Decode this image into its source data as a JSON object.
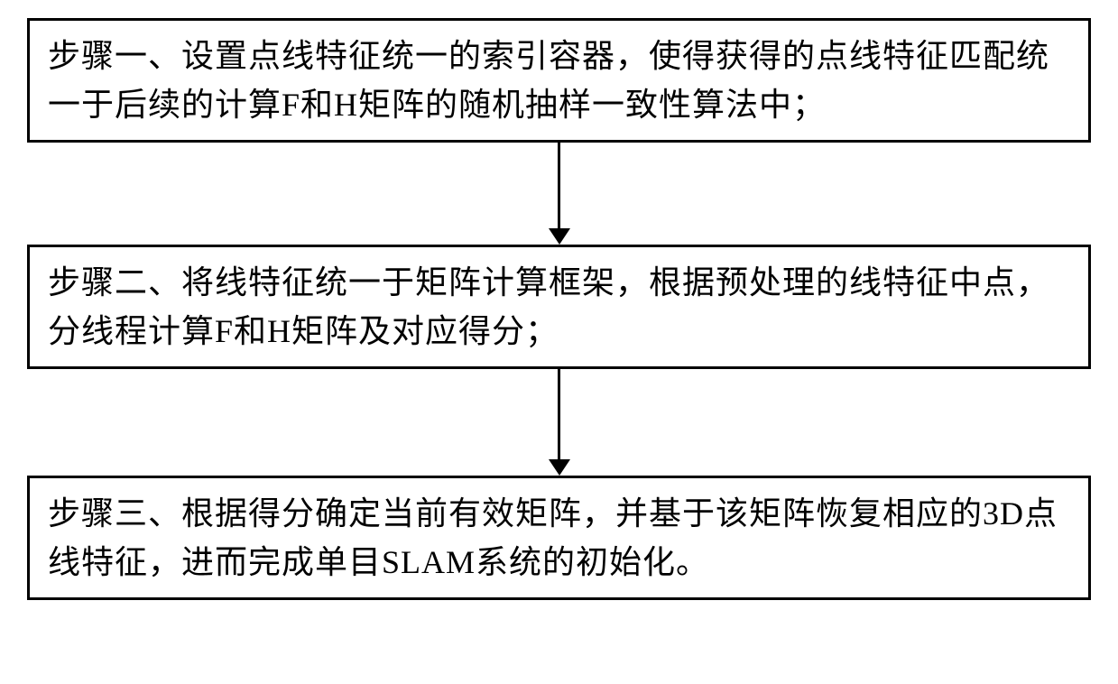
{
  "flowchart": {
    "type": "flowchart",
    "direction": "vertical",
    "background_color": "#ffffff",
    "box_border_color": "#000000",
    "box_border_width": 3,
    "box_padding": "12px 20px",
    "text_color": "#000000",
    "font_family": "SimSun",
    "font_size": 36,
    "line_height": 1.5,
    "arrow_color": "#000000",
    "arrow_line_width": 3,
    "arrow_head_size": 18,
    "steps": [
      {
        "id": "step1",
        "text": "步骤一、设置点线特征统一的索引容器，使得获得的点线特征匹配统一于后续的计算F和H矩阵的随机抽样一致性算法中；",
        "arrow_height": 95
      },
      {
        "id": "step2",
        "text": "步骤二、将线特征统一于矩阵计算框架，根据预处理的线特征中点，分线程计算F和H矩阵及对应得分；",
        "arrow_height": 100
      },
      {
        "id": "step3",
        "text": "步骤三、根据得分确定当前有效矩阵，并基于该矩阵恢复相应的3D点线特征，进而完成单目SLAM系统的初始化。",
        "arrow_height": 0
      }
    ]
  }
}
